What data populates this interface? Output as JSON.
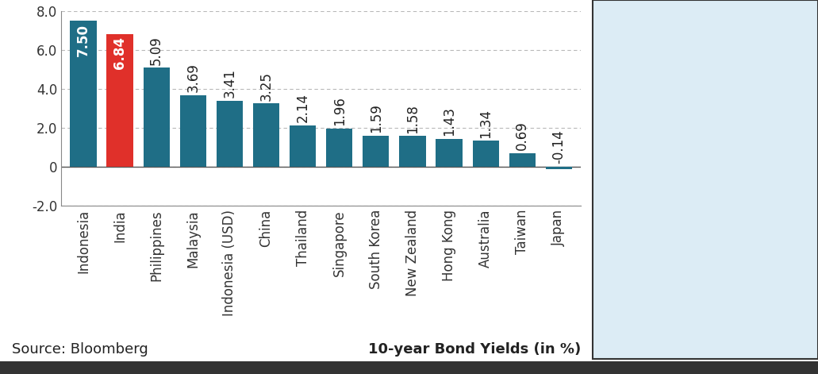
{
  "chart_data": {
    "type": "bar",
    "title": "10-year Bond Yields (in %)",
    "source": "Source: Bloomberg",
    "categories": [
      "Indonesia",
      "India",
      "Philippines",
      "Malaysia",
      "Indonesia (USD)",
      "China",
      "Thailand",
      "Singapore",
      "South Korea",
      "New Zealand",
      "Hong Kong",
      "Australia",
      "Taiwan",
      "Japan"
    ],
    "values": [
      7.5,
      6.84,
      5.09,
      3.69,
      3.41,
      3.25,
      2.14,
      1.96,
      1.59,
      1.58,
      1.43,
      1.34,
      0.69,
      -0.14
    ],
    "value_labels": [
      "7.50",
      "6.84",
      "5.09",
      "3.69",
      "3.41",
      "3.25",
      "2.14",
      "1.96",
      "1.59",
      "1.58",
      "1.43",
      "1.34",
      "0.69",
      "-0.14"
    ],
    "colors": [
      "#1f6e86",
      "#e0302a",
      "#1f6e86",
      "#1f6e86",
      "#1f6e86",
      "#1f6e86",
      "#1f6e86",
      "#1f6e86",
      "#1f6e86",
      "#1f6e86",
      "#1f6e86",
      "#1f6e86",
      "#1f6e86",
      "#1f6e86"
    ],
    "ylim": [
      -2,
      8
    ],
    "yticks": [
      {
        "value": -2,
        "label": "-2.0"
      },
      0,
      {
        "value": 2,
        "label": "2.0"
      },
      {
        "value": 4,
        "label": "4.0"
      },
      {
        "value": 6,
        "label": "6.0"
      },
      {
        "value": 8,
        "label": "8.0"
      }
    ],
    "grid": true,
    "data_labels": true
  }
}
